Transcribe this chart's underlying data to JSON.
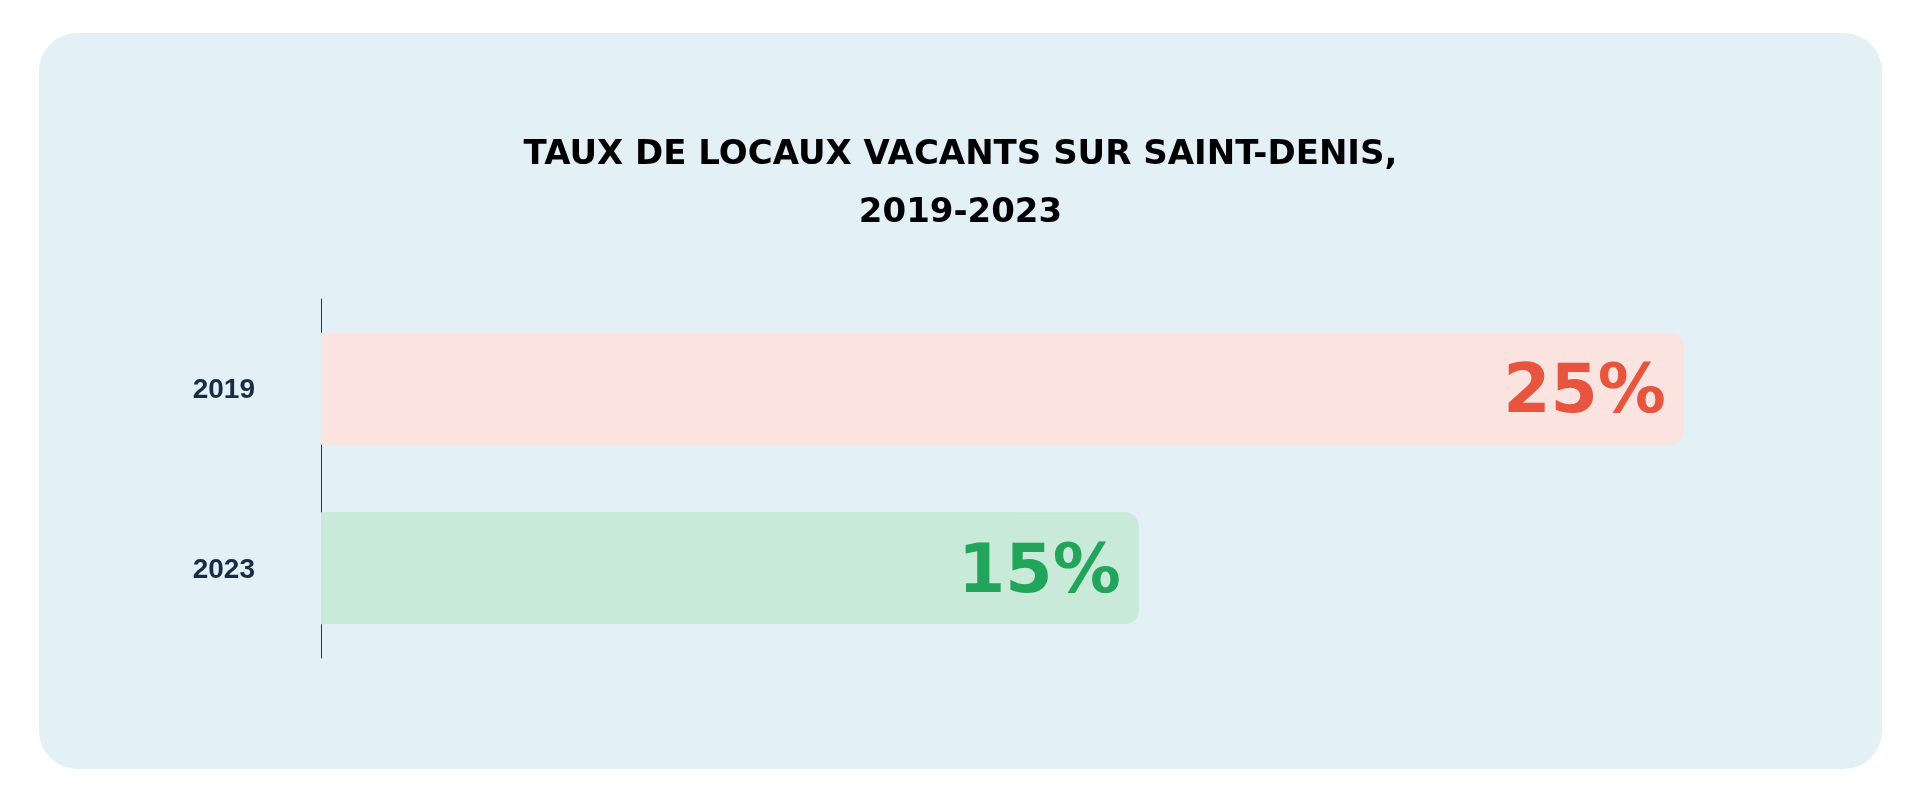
{
  "chart_data": {
    "type": "bar",
    "orientation": "horizontal",
    "title": "TAUX DE LOCAUX VACANTS SUR SAINT-DENIS,\n2019-2023",
    "categories": [
      "2019",
      "2023"
    ],
    "values": [
      25,
      15
    ],
    "value_labels": [
      "25%",
      "15%"
    ],
    "colors": [
      "#fbe3e0",
      "#c9ead9"
    ],
    "tick_labels": "y"
  }
}
